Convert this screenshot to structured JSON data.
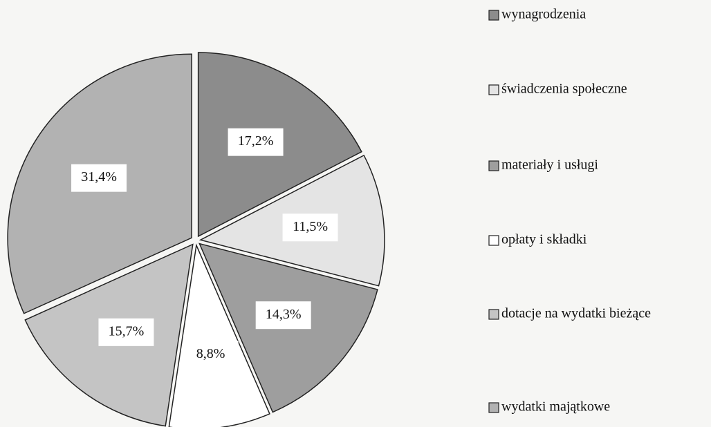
{
  "chart_data": {
    "type": "pie",
    "categories": [
      "wynagrodzenia",
      "świadczenia społeczne",
      "materiały i usługi",
      "opłaty i składki",
      "dotacje na wydatki bieżące",
      "wydatki majątkowe"
    ],
    "values": [
      17.2,
      11.5,
      14.3,
      8.8,
      15.7,
      31.4
    ],
    "value_labels": [
      "17,2%",
      "11,5%",
      "14,3%",
      "8,8%",
      "15,7%",
      "31,4%"
    ],
    "colors": [
      "#8c8c8c",
      "#e4e4e4",
      "#9e9e9e",
      "#ffffff",
      "#c4c4c4",
      "#b2b2b2"
    ],
    "legend": "right"
  }
}
